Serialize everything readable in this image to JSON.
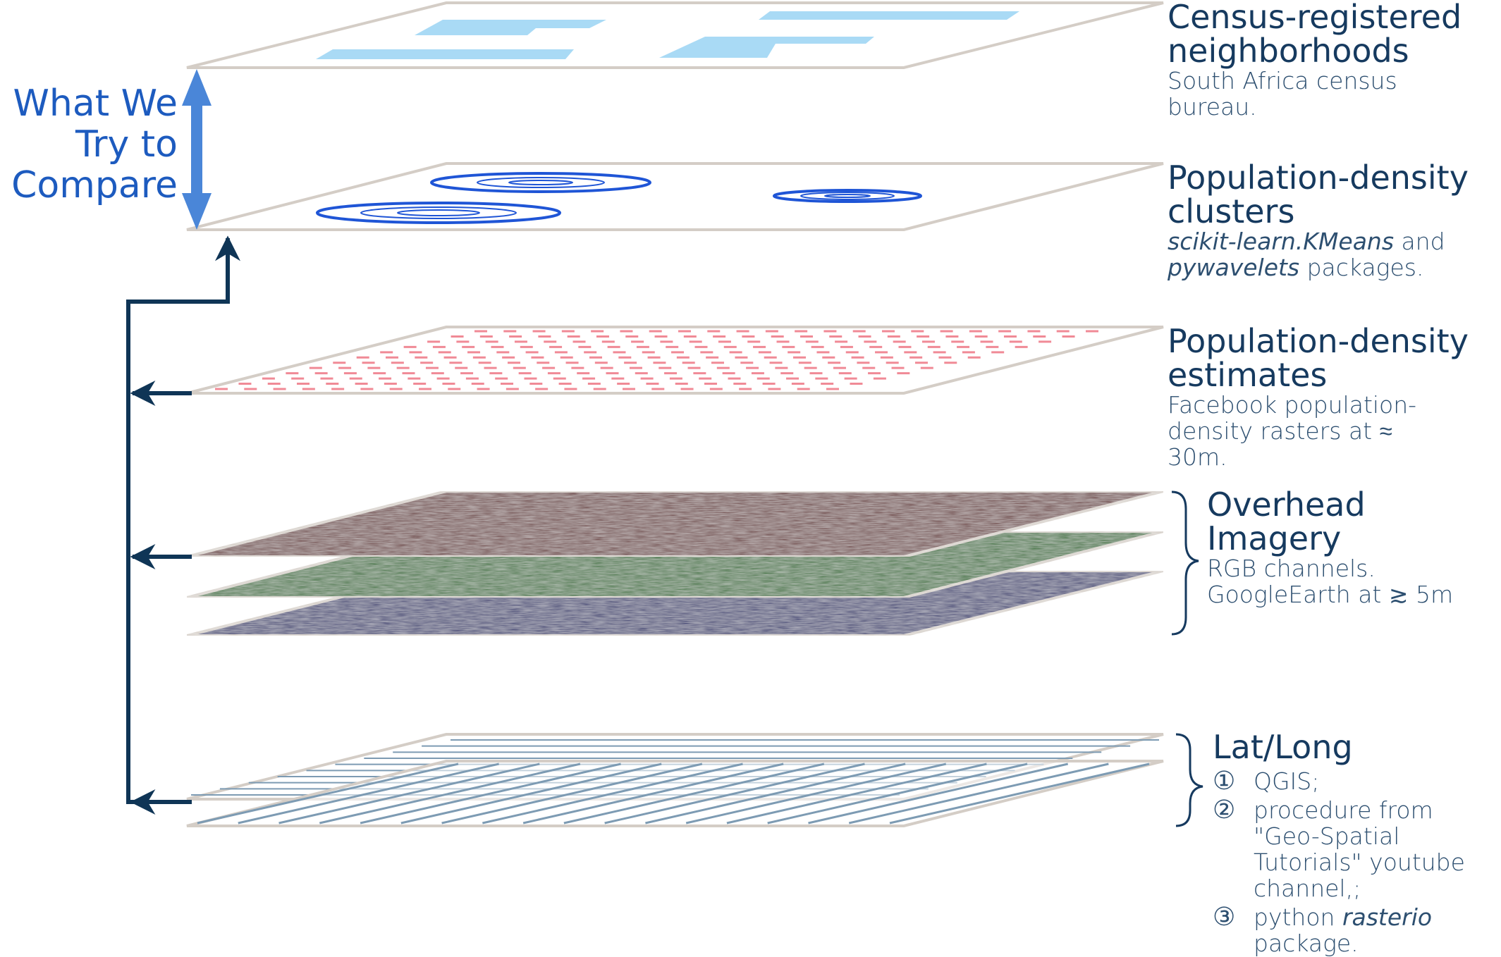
{
  "compare_label": "What We Try to Compare",
  "layers": {
    "census": {
      "title": "Census-registered neighborhoods",
      "source": "South Africa census bureau."
    },
    "clusters": {
      "title": "Population-density clusters",
      "pkg1": "scikit-learn.KMeans",
      "and": " and",
      "pkg2": "pywavelets",
      "packages": " packages."
    },
    "estimates": {
      "title": "Population-density estimates",
      "source": "Facebook population-density rasters at ≈ 30m."
    },
    "imagery": {
      "title": "Overhead Imagery",
      "line1": "RGB channels.",
      "line2": "GoogleEarth at ≳ 5m",
      "channel_colors": [
        "#6b3a3a",
        "#2e6e2e",
        "#33346f"
      ]
    },
    "latlong": {
      "title": "Lat/Long",
      "steps": [
        {
          "num": "①",
          "text": "QGIS;"
        },
        {
          "num": "②",
          "text": "procedure from \"Geo-Spatial Tutorials\" youtube channel,;"
        },
        {
          "num": "③",
          "pre": "python ",
          "em": "rasterio",
          "post": " package."
        }
      ]
    }
  },
  "colors": {
    "arrow": "#0f3556",
    "compare_arrow": "#4a86d8",
    "census_patch": "#a9daf5",
    "cluster_ring": "#1f55d6",
    "estimate_dash": "#f08a96",
    "grid_line": "#7d9bb3",
    "plate_edge": "#d4cdc6"
  }
}
